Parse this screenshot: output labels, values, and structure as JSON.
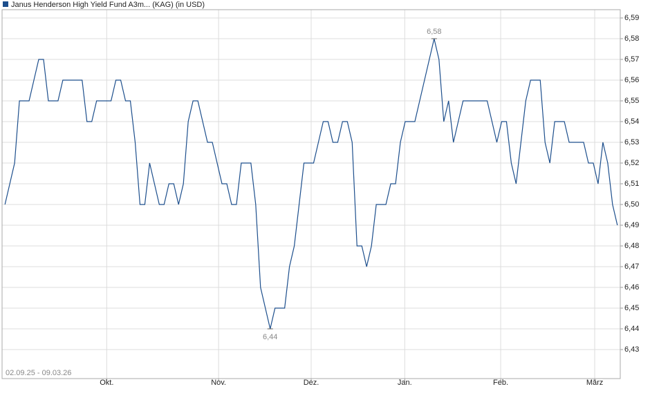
{
  "chart_data": {
    "type": "line",
    "title": "Janus Henderson High Yield Fund A3m... (KAG) (in USD)",
    "date_range": "02.09.25 - 09.03.26",
    "color": "#1c4e8c",
    "grid": true,
    "values": [
      6.5,
      6.51,
      6.52,
      6.55,
      6.55,
      6.55,
      6.56,
      6.57,
      6.57,
      6.55,
      6.55,
      6.55,
      6.56,
      6.56,
      6.56,
      6.56,
      6.56,
      6.54,
      6.54,
      6.55,
      6.55,
      6.55,
      6.55,
      6.56,
      6.56,
      6.55,
      6.55,
      6.53,
      6.5,
      6.5,
      6.52,
      6.51,
      6.5,
      6.5,
      6.51,
      6.51,
      6.5,
      6.51,
      6.54,
      6.55,
      6.55,
      6.54,
      6.53,
      6.53,
      6.52,
      6.51,
      6.51,
      6.5,
      6.5,
      6.52,
      6.52,
      6.52,
      6.5,
      6.46,
      6.45,
      6.44,
      6.45,
      6.45,
      6.45,
      6.47,
      6.48,
      6.5,
      6.52,
      6.52,
      6.52,
      6.53,
      6.54,
      6.54,
      6.53,
      6.53,
      6.54,
      6.54,
      6.53,
      6.48,
      6.48,
      6.47,
      6.48,
      6.5,
      6.5,
      6.5,
      6.51,
      6.51,
      6.53,
      6.54,
      6.54,
      6.54,
      6.55,
      6.56,
      6.57,
      6.58,
      6.57,
      6.54,
      6.55,
      6.53,
      6.54,
      6.55,
      6.55,
      6.55,
      6.55,
      6.55,
      6.55,
      6.54,
      6.53,
      6.54,
      6.54,
      6.52,
      6.51,
      6.53,
      6.55,
      6.56,
      6.56,
      6.56,
      6.53,
      6.52,
      6.54,
      6.54,
      6.54,
      6.53,
      6.53,
      6.53,
      6.53,
      6.52,
      6.52,
      6.51,
      6.53,
      6.52,
      6.5,
      6.49
    ],
    "value_labels": [
      null,
      null,
      null,
      null,
      null,
      null,
      null,
      null,
      null,
      null,
      null,
      null,
      null,
      null,
      null,
      null,
      null,
      null,
      null,
      null,
      null,
      null,
      null,
      null,
      null,
      null,
      null,
      null,
      null,
      null,
      null,
      null,
      null,
      null,
      null,
      null,
      null,
      null,
      null,
      null,
      null,
      null,
      null,
      null,
      null,
      null,
      null,
      null,
      null,
      null,
      null,
      null,
      null,
      null,
      null,
      "6,44",
      null,
      null,
      null,
      null,
      null,
      null,
      null,
      null,
      null,
      null,
      null,
      null,
      null,
      null,
      null,
      null,
      null,
      null,
      null,
      null,
      null,
      null,
      null,
      null,
      null,
      null,
      null,
      null,
      null,
      null,
      null,
      null,
      null,
      "6,58",
      null,
      null,
      null,
      null,
      null,
      null,
      null,
      null,
      null,
      null,
      null,
      null,
      null,
      null,
      null,
      null,
      null,
      null,
      null,
      null,
      null,
      null,
      null,
      null,
      null,
      null,
      null,
      null,
      null,
      null,
      null,
      null,
      null,
      null,
      null,
      null,
      null,
      null
    ],
    "xlim": [
      -0.6,
      127.6
    ],
    "xticks": [
      {
        "value": 21.1,
        "label": "Okt."
      },
      {
        "value": 44.3,
        "label": "Nov."
      },
      {
        "value": 63.5,
        "label": "Dez."
      },
      {
        "value": 82.9,
        "label": "Jan."
      },
      {
        "value": 102.8,
        "label": "Feb."
      },
      {
        "value": 122.3,
        "label": "März"
      }
    ],
    "ylim": [
      6.416,
      6.594
    ],
    "yticks": [
      {
        "value": 6.43,
        "label": "6,43"
      },
      {
        "value": 6.44,
        "label": "6,44"
      },
      {
        "value": 6.45,
        "label": "6,45"
      },
      {
        "value": 6.46,
        "label": "6,46"
      },
      {
        "value": 6.47,
        "label": "6,47"
      },
      {
        "value": 6.48,
        "label": "6,48"
      },
      {
        "value": 6.49,
        "label": "6,49"
      },
      {
        "value": 6.5,
        "label": "6,50"
      },
      {
        "value": 6.51,
        "label": "6,51"
      },
      {
        "value": 6.52,
        "label": "6,52"
      },
      {
        "value": 6.53,
        "label": "6,53"
      },
      {
        "value": 6.54,
        "label": "6,54"
      },
      {
        "value": 6.55,
        "label": "6,55"
      },
      {
        "value": 6.56,
        "label": "6,56"
      },
      {
        "value": 6.57,
        "label": "6,57"
      },
      {
        "value": 6.58,
        "label": "6,58"
      },
      {
        "value": 6.59,
        "label": "6,59"
      }
    ]
  }
}
